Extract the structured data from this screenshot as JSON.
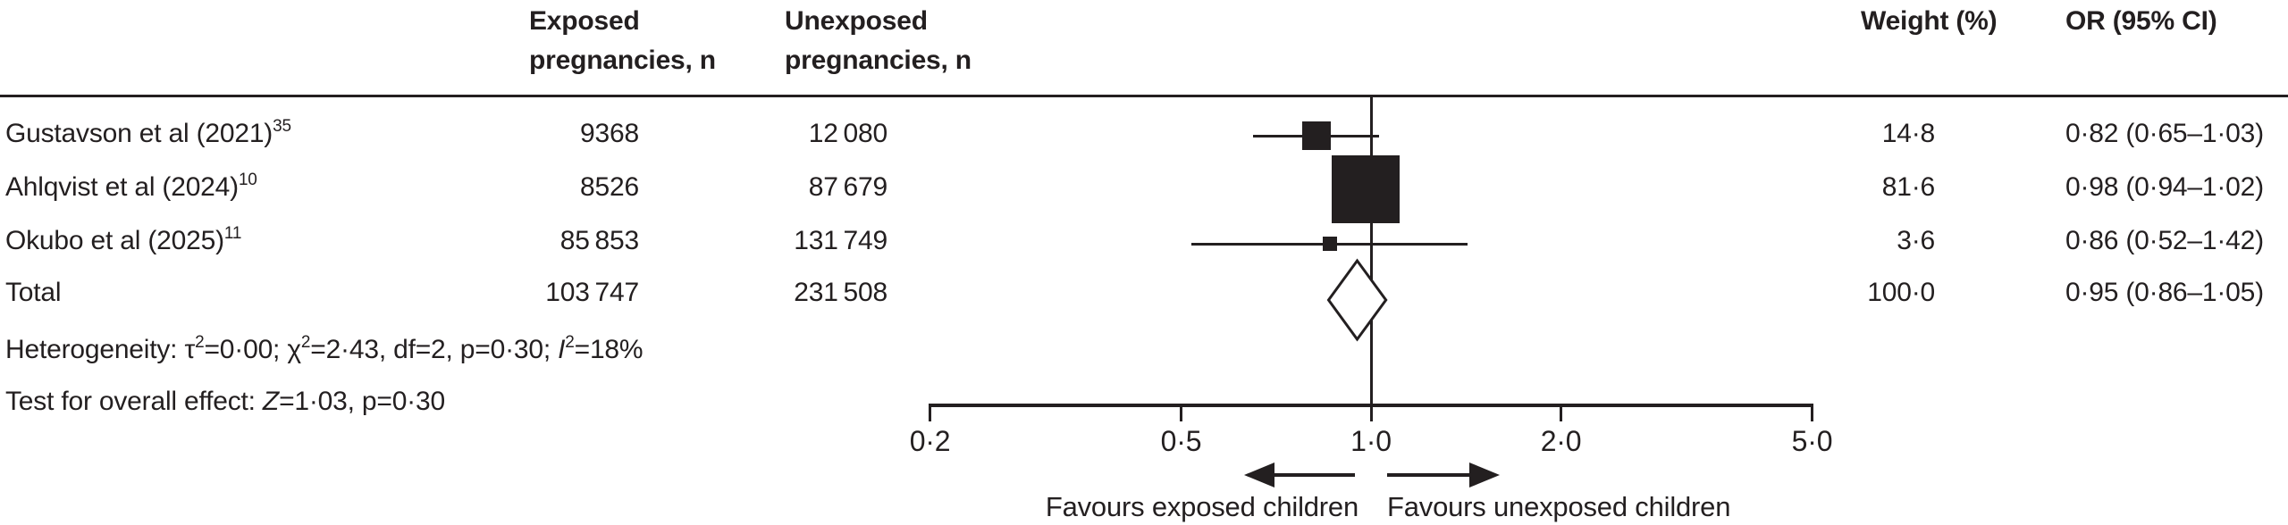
{
  "figure": {
    "columns": {
      "exposed": "Exposed\npregnancies, n",
      "unexposed": "Unexposed\npregnancies, n",
      "weight": "Weight (%)",
      "or": "OR (95% CI)"
    },
    "rows": [
      {
        "study": "Gustavson et al (2021)",
        "ref": "35",
        "exposed": "9368",
        "unexposed": "12 080",
        "weight": "14·8",
        "or_ci": "0·82 (0·65–1·03)"
      },
      {
        "study": "Ahlqvist et al (2024)",
        "ref": "10",
        "exposed": "8526",
        "unexposed": "87 679",
        "weight": "81·6",
        "or_ci": "0·98 (0·94–1·02)"
      },
      {
        "study": "Okubo et al (2025)",
        "ref": "11",
        "exposed": "85 853",
        "unexposed": "131 749",
        "weight": "3·6",
        "or_ci": "0·86 (0·52–1·42)"
      },
      {
        "study": "Total",
        "exposed": "103 747",
        "unexposed": "231 508",
        "weight": "100·0",
        "or_ci": "0·95 (0·86–1·05)"
      }
    ],
    "stats": {
      "het_prefix": "Heterogeneity: τ",
      "sup2": "2",
      "het_mid1": "=0·00; χ",
      "het_mid2": "=2·43, df=2, p=0·30; ",
      "het_i": "I",
      "het_suffix": "=18%",
      "test_prefix": "Test for overall effect: ",
      "test_z": "Z",
      "test_suffix": "=1·03, p=0·30"
    },
    "favours": {
      "left": "Favours exposed children",
      "right": "Favours unexposed children"
    }
  },
  "chart_data": {
    "type": "forest",
    "effect_measure": "OR",
    "x_scale": "log",
    "axis_range": [
      0.2,
      5.0
    ],
    "x_ticks": [
      0.2,
      0.5,
      1.0,
      2.0,
      5.0
    ],
    "x_tick_labels": [
      "0·2",
      "0·5",
      "1·0",
      "2·0",
      "5·0"
    ],
    "null_line": 1.0,
    "series": [
      {
        "name": "Gustavson et al (2021)",
        "or": 0.82,
        "ci_low": 0.65,
        "ci_high": 1.03,
        "weight_pct": 14.8,
        "exposed_n": 9368,
        "unexposed_n": 12080
      },
      {
        "name": "Ahlqvist et al (2024)",
        "or": 0.98,
        "ci_low": 0.94,
        "ci_high": 1.02,
        "weight_pct": 81.6,
        "exposed_n": 8526,
        "unexposed_n": 87679
      },
      {
        "name": "Okubo et al (2025)",
        "or": 0.86,
        "ci_low": 0.52,
        "ci_high": 1.42,
        "weight_pct": 3.6,
        "exposed_n": 85853,
        "unexposed_n": 131749
      }
    ],
    "total": {
      "name": "Total",
      "or": 0.95,
      "ci_low": 0.86,
      "ci_high": 1.05,
      "weight_pct": 100.0,
      "exposed_n": 103747,
      "unexposed_n": 231508
    },
    "heterogeneity": "tau2=0.00; chi2=2.43, df=2, p=0.30; I2=18%",
    "overall_effect": "Z=1.03, p=0.30"
  }
}
